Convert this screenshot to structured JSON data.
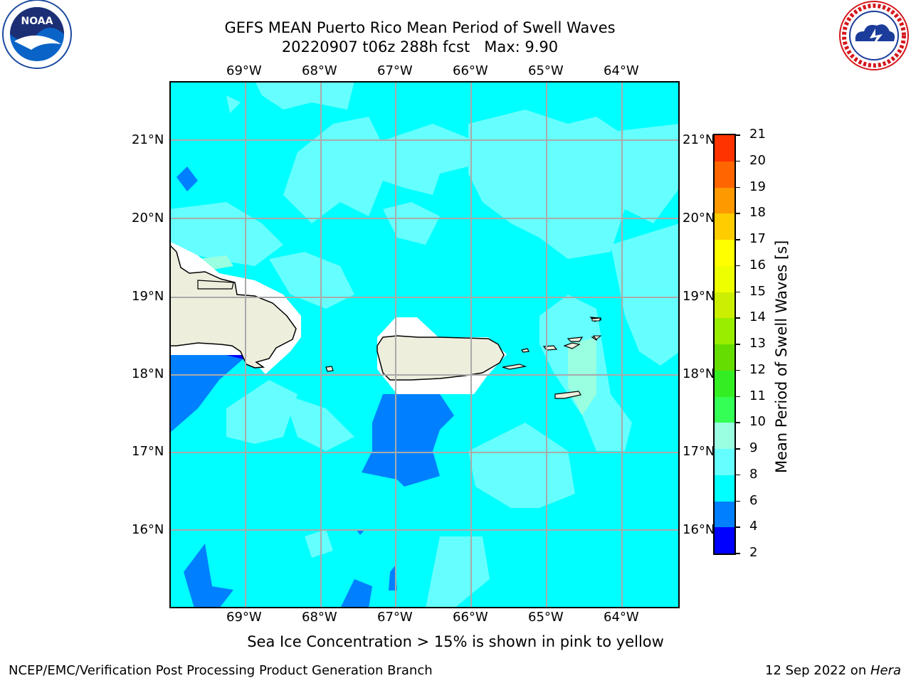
{
  "title": {
    "line1": "GEFS MEAN Puerto Rico Mean Period of Swell Waves",
    "line2": "20220907 t06z 288h fcst   Max: 9.90"
  },
  "map": {
    "lon_labels": [
      "69°W",
      "68°W",
      "67°W",
      "66°W",
      "65°W",
      "64°W"
    ],
    "lat_labels": [
      "21°N",
      "20°N",
      "19°N",
      "18°N",
      "17°N",
      "16°N"
    ],
    "ocean_color": "#00ffff",
    "land_color": "#eeeedd",
    "contour_colors": {
      "2-4": "#0000ff",
      "4-6": "#0080ff",
      "6-8": "#00ffff",
      "8-9": "#66ffff",
      "9-10": "#99ffe0"
    }
  },
  "colorbar": {
    "label": "Mean Period of Swell Waves [s]",
    "ticks": [
      "2",
      "4",
      "6",
      "8",
      "9",
      "10",
      "11",
      "12",
      "13",
      "14",
      "15",
      "16",
      "17",
      "18",
      "19",
      "20",
      "21"
    ],
    "colors": [
      "#0000ff",
      "#0080ff",
      "#00ffff",
      "#66ffff",
      "#99ffe0",
      "#33ff55",
      "#33ee22",
      "#66dd00",
      "#99ee00",
      "#ccee00",
      "#eeff00",
      "#ffff00",
      "#ffcc00",
      "#ff9900",
      "#ff6600",
      "#ff3300",
      "#ff0000"
    ]
  },
  "caption": "Sea Ice Concentration > 15% is shown in pink to yellow",
  "footer": {
    "left": "NCEP/EMC/Verification Post Processing Product Generation Branch",
    "right_date": "12 Sep 2022 on ",
    "right_host": "Hera"
  },
  "logos": {
    "noaa": "NOAA",
    "nws": "NATIONAL WEATHER SERVICE"
  }
}
